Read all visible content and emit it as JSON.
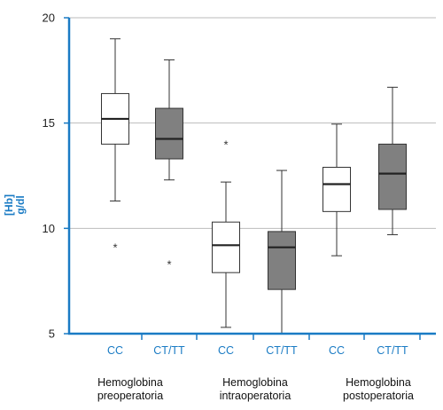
{
  "chart_data": {
    "type": "box",
    "ylabel_lines": [
      "[Hb]",
      "g/dl"
    ],
    "ylim": [
      5,
      20
    ],
    "yticks": [
      5,
      10,
      15,
      20
    ],
    "grid": true,
    "categories": [
      "CC",
      "CT/TT",
      "CC",
      "CT/TT",
      "CC",
      "CT/TT"
    ],
    "groups": [
      {
        "lines": [
          "Hemoglobina",
          "preoperatoria"
        ]
      },
      {
        "lines": [
          "Hemoglobina",
          "intraoperatoria"
        ]
      },
      {
        "lines": [
          "Hemoglobina",
          "postoperatoria"
        ]
      }
    ],
    "boxes": [
      {
        "category": "CC",
        "group": 0,
        "fill": "#ffffff",
        "whisker_low": 11.3,
        "q1": 14.0,
        "median": 15.2,
        "q3": 16.4,
        "whisker_high": 19.0,
        "outliers": [
          9.1
        ]
      },
      {
        "category": "CT/TT",
        "group": 0,
        "fill": "#808080",
        "whisker_low": 12.3,
        "q1": 13.3,
        "median": 14.25,
        "q3": 15.7,
        "whisker_high": 18.0,
        "outliers": [
          8.3
        ]
      },
      {
        "category": "CC",
        "group": 1,
        "fill": "#ffffff",
        "whisker_low": 5.3,
        "q1": 7.9,
        "median": 9.2,
        "q3": 10.3,
        "whisker_high": 12.2,
        "outliers": [
          14.0
        ]
      },
      {
        "category": "CT/TT",
        "group": 1,
        "fill": "#808080",
        "whisker_low": 5.0,
        "q1": 7.1,
        "median": 9.1,
        "q3": 9.85,
        "whisker_high": 12.75,
        "outliers": []
      },
      {
        "category": "CC",
        "group": 2,
        "fill": "#ffffff",
        "whisker_low": 8.7,
        "q1": 10.8,
        "median": 12.1,
        "q3": 12.9,
        "whisker_high": 14.95,
        "outliers": []
      },
      {
        "category": "CT/TT",
        "group": 2,
        "fill": "#808080",
        "whisker_low": 9.7,
        "q1": 10.9,
        "median": 12.6,
        "q3": 14.0,
        "whisker_high": 16.7,
        "outliers": []
      }
    ],
    "colors": {
      "axis": "#1a7bc4",
      "grid": "#bbbbbb",
      "stroke": "#333333"
    }
  }
}
